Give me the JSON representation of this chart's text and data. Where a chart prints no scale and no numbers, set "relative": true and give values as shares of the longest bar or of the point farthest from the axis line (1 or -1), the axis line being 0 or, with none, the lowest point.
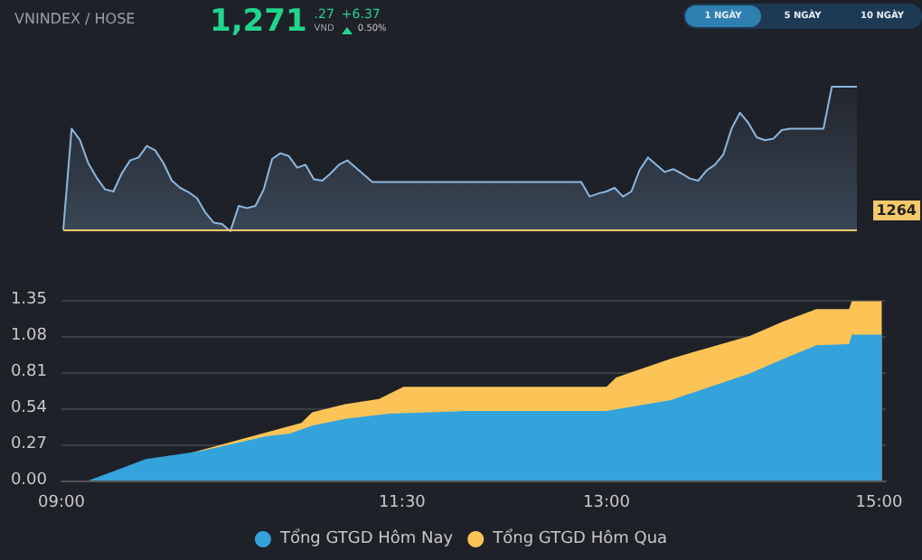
{
  "chart_data": [
    {
      "type": "area",
      "title": "VNINDEX / HOSE",
      "relative": true,
      "tick_labels": false,
      "grid": false,
      "legend": false,
      "annotations": [
        "1,271",
        ".27",
        "VND",
        "+6.37",
        "0.50%",
        "1 NGÀY",
        "5 NGÀY",
        "10 NGÀY",
        "1264"
      ],
      "ref_lines": [
        {
          "axis": "y",
          "value": 0.01,
          "color": "#f5c96a"
        }
      ],
      "categories": [
        null,
        null,
        null,
        null,
        null,
        null,
        null,
        null,
        null,
        null,
        null,
        null,
        null,
        null,
        null,
        null,
        null,
        null,
        null,
        null,
        null,
        null,
        null,
        null,
        null,
        null,
        null,
        null,
        null,
        null,
        null,
        null,
        null,
        null,
        null,
        null,
        null,
        null,
        null,
        null,
        null,
        null,
        null,
        null,
        null,
        null,
        null,
        null,
        null,
        null,
        null,
        null,
        null,
        null,
        null,
        null,
        null,
        null,
        null,
        null,
        null,
        null,
        null,
        null,
        null,
        null,
        null,
        null,
        null,
        null,
        null,
        null,
        null,
        null,
        null,
        null,
        null,
        null,
        null,
        null,
        null,
        null,
        null,
        null,
        null,
        null,
        null,
        null,
        null,
        null,
        null,
        null,
        null,
        null,
        null,
        null
      ],
      "series": [
        {
          "color": "#8ab8e0",
          "values": [
            0.01,
            0.71,
            0.63,
            0.47,
            0.37,
            0.29,
            0.275,
            0.4,
            0.49,
            0.51,
            0.59,
            0.56,
            0.47,
            0.35,
            0.3,
            0.27,
            0.23,
            0.13,
            0.06,
            0.05,
            0,
            0.175,
            0.16,
            0.175,
            0.29,
            0.5,
            0.54,
            0.52,
            0.44,
            0.46,
            0.36,
            0.35,
            0.4,
            0.46,
            0.49,
            0.44,
            0.39,
            0.34,
            0.34,
            0.34,
            0.34,
            0.34,
            0.34,
            0.34,
            0.34,
            0.34,
            0.34,
            0.34,
            0.34,
            0.34,
            0.34,
            0.34,
            0.34,
            0.34,
            0.34,
            0.34,
            0.34,
            0.34,
            0.34,
            0.34,
            0.34,
            0.34,
            0.34,
            0.24,
            0.26,
            0.275,
            0.3,
            0.24,
            0.275,
            0.425,
            0.51,
            0.46,
            0.41,
            0.43,
            0.4,
            0.365,
            0.35,
            0.42,
            0.46,
            0.53,
            0.71,
            0.82,
            0.75,
            0.65,
            0.63,
            0.64,
            0.7,
            0.71,
            0.71,
            0.71,
            0.71,
            0.71,
            1.0,
            1.0,
            1.0,
            1.0
          ]
        }
      ]
    },
    {
      "type": "area",
      "xlim": [
        9,
        15.05
      ],
      "ylim": [
        0,
        1.35
      ],
      "xticks": [
        {
          "value": 9,
          "label": "09:00"
        },
        {
          "value": 11.5,
          "label": "11:30"
        },
        {
          "value": 13,
          "label": "13:00"
        },
        {
          "value": 15,
          "label": "15:00"
        }
      ],
      "yticks": [
        {
          "value": 0,
          "label": "0.00"
        },
        0.27,
        0.54,
        0.81,
        1.08,
        1.35
      ],
      "grid": "y",
      "legend": "bottom",
      "series": [
        {
          "name": "Tổng GTGD Hôm Nay",
          "color": "#34a3dc",
          "x": [
            9.0,
            9.2,
            9.62,
            10.02,
            10.5,
            10.67,
            10.84,
            11.08,
            11.4,
            11.98,
            13.0,
            13.47,
            14.05,
            14.3,
            14.54,
            14.78,
            14.8,
            15.02
          ],
          "values": [
            0,
            0,
            0.16,
            0.22,
            0.33,
            0.35,
            0.41,
            0.46,
            0.5,
            0.52,
            0.52,
            0.6,
            0.8,
            0.91,
            1.01,
            1.02,
            1.09,
            1.09
          ]
        },
        {
          "name": "Tổng GTGD Hôm Qua",
          "color": "#fcc457",
          "x": [
            9.0,
            9.2,
            9.62,
            10.02,
            10.5,
            10.67,
            10.76,
            10.84,
            11.08,
            11.33,
            11.51,
            13.0,
            13.07,
            13.47,
            14.05,
            14.3,
            14.54,
            14.78,
            14.8,
            15.02
          ],
          "values": [
            0,
            0,
            null,
            null,
            null,
            null,
            0.43,
            0.51,
            0.57,
            0.61,
            0.7,
            0.7,
            0.77,
            0.91,
            1.08,
            1.19,
            1.28,
            1.28,
            1.34,
            1.34
          ]
        }
      ]
    }
  ]
}
